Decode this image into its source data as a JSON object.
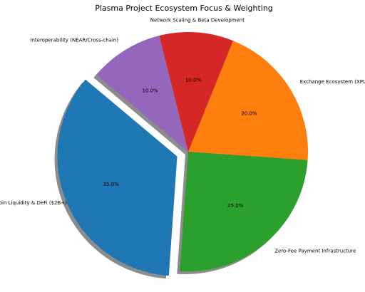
{
  "chart_data": {
    "type": "pie",
    "title": "Plasma Project Ecosystem Focus & Weighting",
    "categories": [
      "oin Liquidity & DeFi ($2B+)",
      "Zero-Fee Payment Infrastructure",
      "Exchange Ecosystem (XPL/B",
      "Network Scaling & Beta Development",
      "Interoperability (NEAR/Cross-chain)"
    ],
    "values": [
      35,
      25,
      20,
      10,
      10
    ],
    "value_labels": [
      "35.0%",
      "25.0%",
      "20.0%",
      "10.0%",
      "10.0%"
    ],
    "colors": [
      "#1f77b4",
      "#2ca02c",
      "#ff7f0e",
      "#d62728",
      "#9467bd"
    ],
    "explode": [
      0.1,
      0,
      0,
      0,
      0
    ],
    "start_angle": 140,
    "shadow": true
  }
}
